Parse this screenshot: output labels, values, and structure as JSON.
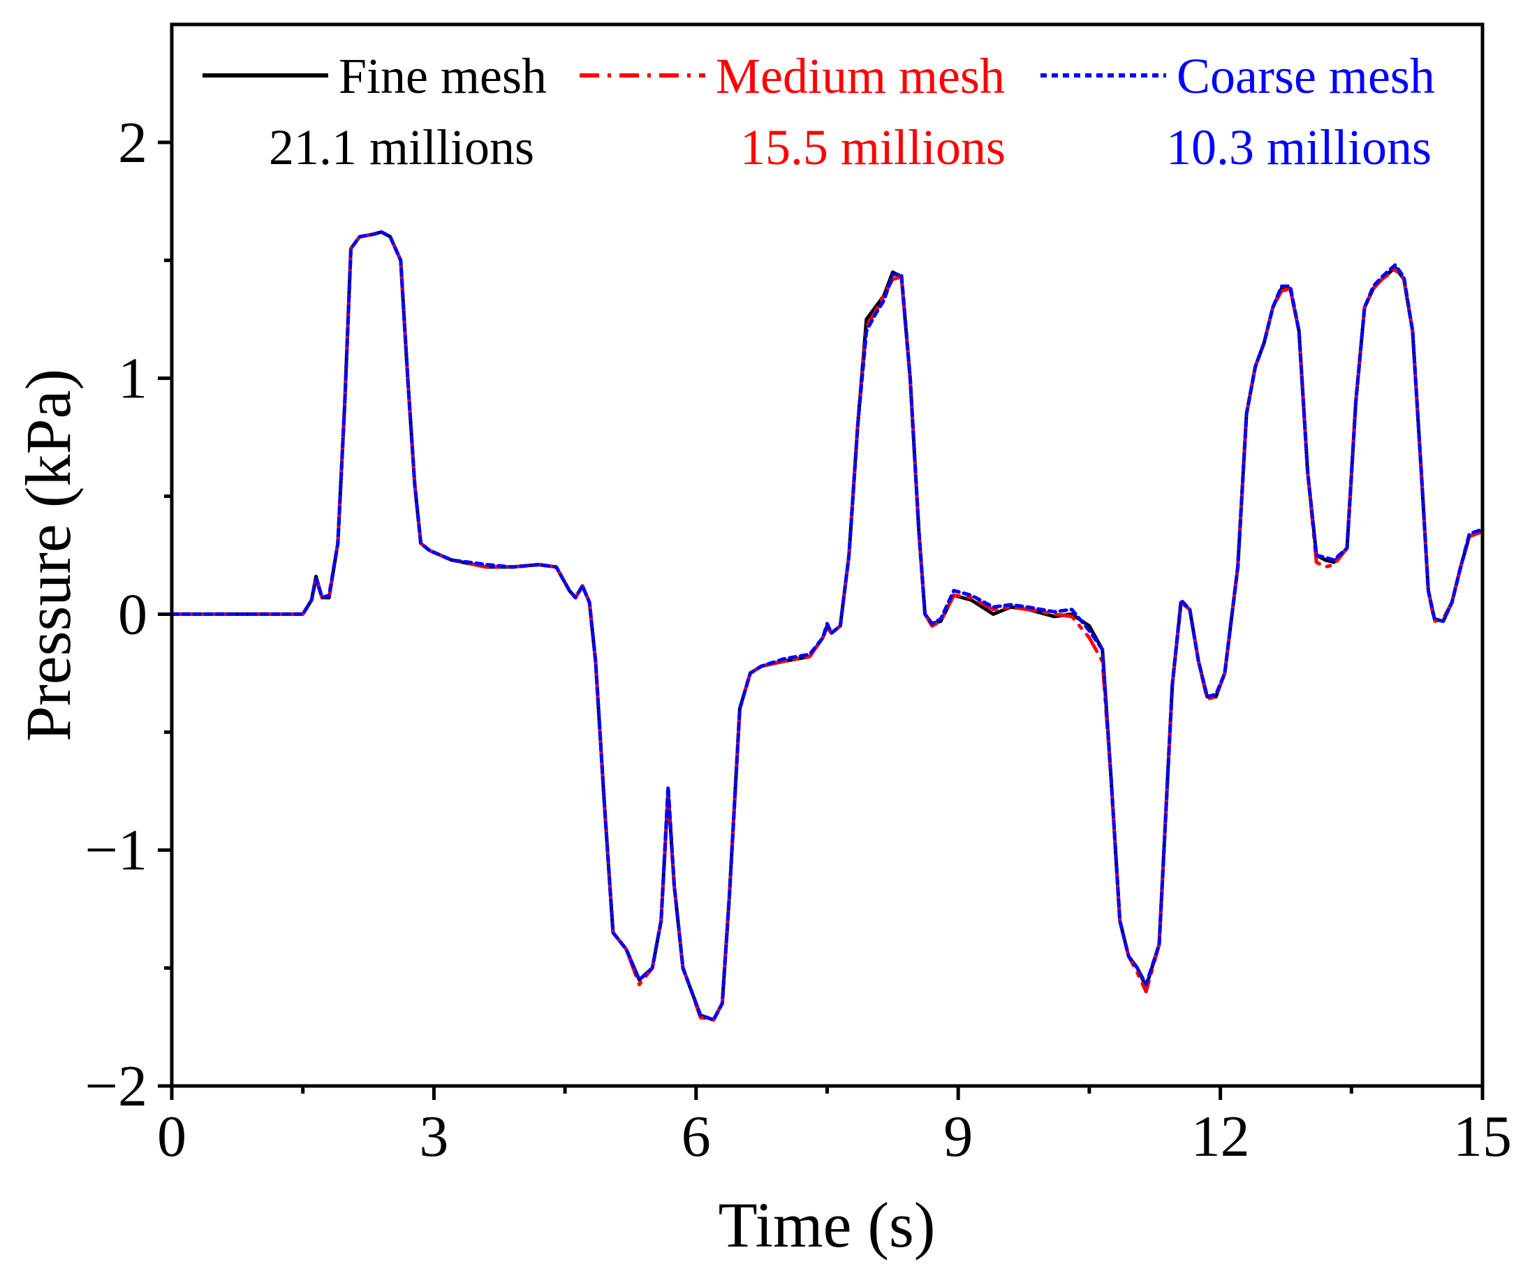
{
  "chart_data": {
    "type": "line",
    "title": "",
    "xlabel": "Time (s)",
    "ylabel": "Pressure (kPa)",
    "xlim": [
      0,
      15
    ],
    "ylim": [
      -2,
      2.5
    ],
    "xticks": [
      0,
      3,
      6,
      9,
      12,
      15
    ],
    "xtick_labels": [
      "0",
      "3",
      "6",
      "9",
      "12",
      "15"
    ],
    "xminor": [
      1.5,
      4.5,
      7.5,
      10.5,
      13.5
    ],
    "yticks": [
      -2,
      -1,
      0,
      1,
      2
    ],
    "ytick_labels": [
      "−2",
      "−1",
      "0",
      "1",
      "2"
    ],
    "yminor": [
      -1.5,
      -0.5,
      0.5,
      1.5
    ],
    "legend_position": "top",
    "series": [
      {
        "name": "Fine mesh",
        "subtitle": "21.1 millions",
        "color": "#000000",
        "style": "solid",
        "x": [
          0,
          1.2,
          1.5,
          1.6,
          1.65,
          1.72,
          1.8,
          1.9,
          1.98,
          2.05,
          2.15,
          2.3,
          2.4,
          2.5,
          2.62,
          2.7,
          2.78,
          2.85,
          2.95,
          3.2,
          3.6,
          3.9,
          4.2,
          4.4,
          4.55,
          4.62,
          4.7,
          4.78,
          4.85,
          4.95,
          5.05,
          5.2,
          5.35,
          5.5,
          5.6,
          5.68,
          5.75,
          5.85,
          5.95,
          6.05,
          6.2,
          6.3,
          6.38,
          6.5,
          6.62,
          6.75,
          7.0,
          7.3,
          7.45,
          7.5,
          7.55,
          7.65,
          7.75,
          7.85,
          7.95,
          8.05,
          8.15,
          8.25,
          8.35,
          8.45,
          8.55,
          8.62,
          8.7,
          8.8,
          8.95,
          9.15,
          9.4,
          9.6,
          9.8,
          10.1,
          10.3,
          10.5,
          10.65,
          10.75,
          10.85,
          10.95,
          11.05,
          11.15,
          11.3,
          11.45,
          11.55,
          11.65,
          11.75,
          11.85,
          11.95,
          12.05,
          12.2,
          12.3,
          12.4,
          12.5,
          12.6,
          12.7,
          12.8,
          12.9,
          13.0,
          13.1,
          13.2,
          13.3,
          13.45,
          13.55,
          13.65,
          13.75,
          13.85,
          14.0,
          14.1,
          14.2,
          14.3,
          14.38,
          14.45,
          14.55,
          14.65,
          14.75,
          14.85,
          15.0
        ],
        "y": [
          0,
          0,
          0,
          0.06,
          0.16,
          0.07,
          0.07,
          0.3,
          0.9,
          1.55,
          1.6,
          1.61,
          1.62,
          1.6,
          1.5,
          1.0,
          0.55,
          0.3,
          0.27,
          0.23,
          0.2,
          0.2,
          0.21,
          0.2,
          0.1,
          0.07,
          0.12,
          0.05,
          -0.2,
          -0.8,
          -1.35,
          -1.42,
          -1.55,
          -1.5,
          -1.3,
          -0.75,
          -1.15,
          -1.5,
          -1.6,
          -1.7,
          -1.72,
          -1.65,
          -1.2,
          -0.4,
          -0.25,
          -0.22,
          -0.2,
          -0.18,
          -0.1,
          -0.05,
          -0.08,
          -0.05,
          0.25,
          0.8,
          1.25,
          1.3,
          1.35,
          1.45,
          1.43,
          1.0,
          0.35,
          0.0,
          -0.04,
          -0.03,
          0.08,
          0.06,
          0.0,
          0.03,
          0.02,
          -0.01,
          0.0,
          -0.05,
          -0.15,
          -0.7,
          -1.3,
          -1.45,
          -1.5,
          -1.58,
          -1.4,
          -0.3,
          0.05,
          0.02,
          -0.2,
          -0.35,
          -0.35,
          -0.25,
          0.2,
          0.85,
          1.05,
          1.15,
          1.3,
          1.38,
          1.38,
          1.2,
          0.6,
          0.25,
          0.23,
          0.22,
          0.28,
          0.9,
          1.3,
          1.38,
          1.42,
          1.47,
          1.42,
          1.2,
          0.6,
          0.1,
          -0.02,
          -0.03,
          0.05,
          0.2,
          0.33,
          0.35
        ]
      },
      {
        "name": "Medium mesh",
        "subtitle": "15.5 millions",
        "color": "#ff0000",
        "style": "dashdot",
        "x": [
          0,
          1.2,
          1.5,
          1.6,
          1.65,
          1.72,
          1.8,
          1.9,
          1.98,
          2.05,
          2.15,
          2.3,
          2.4,
          2.5,
          2.62,
          2.7,
          2.78,
          2.85,
          2.95,
          3.2,
          3.6,
          3.9,
          4.2,
          4.4,
          4.55,
          4.62,
          4.7,
          4.78,
          4.85,
          4.95,
          5.05,
          5.2,
          5.35,
          5.5,
          5.6,
          5.68,
          5.75,
          5.85,
          5.95,
          6.05,
          6.2,
          6.3,
          6.38,
          6.5,
          6.62,
          6.75,
          7.0,
          7.3,
          7.45,
          7.5,
          7.55,
          7.65,
          7.75,
          7.85,
          7.95,
          8.05,
          8.15,
          8.25,
          8.35,
          8.45,
          8.55,
          8.62,
          8.7,
          8.8,
          8.95,
          9.15,
          9.4,
          9.6,
          9.8,
          10.1,
          10.3,
          10.5,
          10.65,
          10.75,
          10.85,
          10.95,
          11.05,
          11.15,
          11.3,
          11.45,
          11.55,
          11.65,
          11.75,
          11.85,
          11.95,
          12.05,
          12.2,
          12.3,
          12.4,
          12.5,
          12.6,
          12.7,
          12.8,
          12.9,
          13.0,
          13.1,
          13.2,
          13.3,
          13.45,
          13.55,
          13.65,
          13.75,
          13.85,
          14.0,
          14.1,
          14.2,
          14.3,
          14.38,
          14.45,
          14.55,
          14.65,
          14.75,
          14.85,
          15.0
        ],
        "y": [
          0,
          0,
          0,
          0.06,
          0.15,
          0.07,
          0.07,
          0.3,
          0.9,
          1.55,
          1.6,
          1.61,
          1.62,
          1.6,
          1.5,
          1.0,
          0.55,
          0.3,
          0.27,
          0.23,
          0.2,
          0.2,
          0.21,
          0.2,
          0.1,
          0.07,
          0.12,
          0.05,
          -0.2,
          -0.8,
          -1.35,
          -1.42,
          -1.57,
          -1.5,
          -1.3,
          -0.76,
          -1.15,
          -1.5,
          -1.6,
          -1.71,
          -1.72,
          -1.65,
          -1.2,
          -0.4,
          -0.25,
          -0.22,
          -0.2,
          -0.18,
          -0.1,
          -0.06,
          -0.08,
          -0.05,
          0.25,
          0.8,
          1.22,
          1.28,
          1.35,
          1.42,
          1.43,
          1.0,
          0.35,
          0.0,
          -0.05,
          -0.03,
          0.08,
          0.07,
          0.02,
          0.03,
          0.02,
          0.0,
          -0.01,
          -0.1,
          -0.2,
          -0.7,
          -1.3,
          -1.45,
          -1.52,
          -1.6,
          -1.4,
          -0.3,
          0.05,
          0.02,
          -0.2,
          -0.36,
          -0.35,
          -0.25,
          0.2,
          0.85,
          1.05,
          1.15,
          1.3,
          1.37,
          1.38,
          1.2,
          0.6,
          0.22,
          0.2,
          0.21,
          0.28,
          0.9,
          1.3,
          1.38,
          1.42,
          1.46,
          1.42,
          1.2,
          0.6,
          0.1,
          -0.03,
          -0.02,
          0.05,
          0.2,
          0.33,
          0.35
        ]
      },
      {
        "name": "Coarse mesh",
        "subtitle": "10.3 millions",
        "color": "#0000ff",
        "style": "dotted",
        "x": [
          0,
          1.2,
          1.5,
          1.6,
          1.65,
          1.72,
          1.8,
          1.9,
          1.98,
          2.05,
          2.15,
          2.3,
          2.4,
          2.5,
          2.62,
          2.7,
          2.78,
          2.85,
          2.95,
          3.2,
          3.6,
          3.9,
          4.2,
          4.4,
          4.55,
          4.62,
          4.7,
          4.78,
          4.85,
          4.95,
          5.05,
          5.2,
          5.35,
          5.5,
          5.6,
          5.68,
          5.75,
          5.85,
          5.95,
          6.05,
          6.2,
          6.3,
          6.38,
          6.5,
          6.62,
          6.75,
          7.0,
          7.3,
          7.45,
          7.5,
          7.55,
          7.65,
          7.75,
          7.85,
          7.95,
          8.05,
          8.15,
          8.25,
          8.35,
          8.45,
          8.55,
          8.62,
          8.7,
          8.8,
          8.95,
          9.15,
          9.4,
          9.6,
          9.8,
          10.1,
          10.3,
          10.5,
          10.65,
          10.75,
          10.85,
          10.95,
          11.05,
          11.15,
          11.3,
          11.45,
          11.55,
          11.65,
          11.75,
          11.85,
          11.95,
          12.05,
          12.2,
          12.3,
          12.4,
          12.5,
          12.6,
          12.7,
          12.8,
          12.9,
          13.0,
          13.1,
          13.2,
          13.3,
          13.45,
          13.55,
          13.65,
          13.75,
          13.85,
          14.0,
          14.1,
          14.2,
          14.3,
          14.38,
          14.45,
          14.55,
          14.65,
          14.75,
          14.85,
          15.0
        ],
        "y": [
          0,
          0,
          0,
          0.06,
          0.15,
          0.07,
          0.08,
          0.3,
          0.9,
          1.55,
          1.6,
          1.61,
          1.62,
          1.6,
          1.5,
          1.0,
          0.55,
          0.3,
          0.27,
          0.23,
          0.21,
          0.2,
          0.21,
          0.2,
          0.1,
          0.07,
          0.12,
          0.05,
          -0.2,
          -0.8,
          -1.35,
          -1.42,
          -1.55,
          -1.5,
          -1.3,
          -0.73,
          -1.15,
          -1.5,
          -1.6,
          -1.7,
          -1.72,
          -1.65,
          -1.2,
          -0.4,
          -0.25,
          -0.22,
          -0.19,
          -0.17,
          -0.1,
          -0.04,
          -0.08,
          -0.05,
          0.25,
          0.8,
          1.2,
          1.27,
          1.33,
          1.44,
          1.44,
          1.0,
          0.35,
          0.0,
          -0.04,
          -0.02,
          0.1,
          0.08,
          0.03,
          0.04,
          0.03,
          0.01,
          0.02,
          -0.07,
          -0.15,
          -0.7,
          -1.3,
          -1.45,
          -1.5,
          -1.57,
          -1.4,
          -0.3,
          0.06,
          0.02,
          -0.2,
          -0.35,
          -0.34,
          -0.25,
          0.2,
          0.85,
          1.05,
          1.15,
          1.3,
          1.39,
          1.39,
          1.2,
          0.6,
          0.25,
          0.24,
          0.23,
          0.28,
          0.9,
          1.3,
          1.39,
          1.43,
          1.48,
          1.43,
          1.2,
          0.6,
          0.1,
          -0.02,
          -0.03,
          0.05,
          0.2,
          0.34,
          0.36
        ]
      }
    ]
  }
}
